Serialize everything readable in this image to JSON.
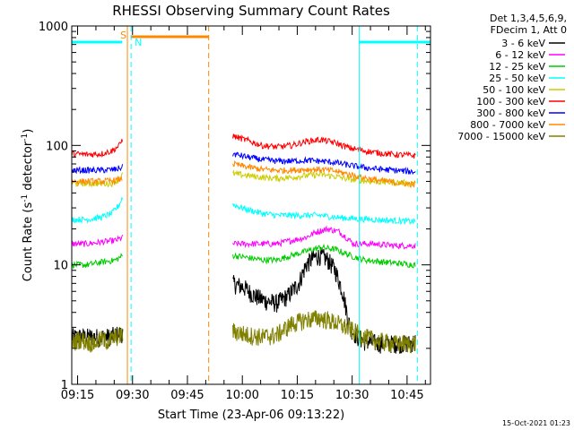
{
  "chart_data": {
    "type": "line",
    "title": "RHESSI Observing Summary Count Rates",
    "xlabel": "Start Time (23-Apr-06 09:13:22)",
    "ylabel_main": "Count Rate (s",
    "ylabel_sup1": "-1",
    "ylabel_mid": " detector",
    "ylabel_sup2": "-1",
    "ylabel_end": ")",
    "yscale": "log",
    "ylim": [
      1,
      1000
    ],
    "xlim_minutes": [
      0,
      98
    ],
    "x_ticks": [
      {
        "label": "09:15",
        "minute": 1.6
      },
      {
        "label": "09:30",
        "minute": 16.6
      },
      {
        "label": "09:45",
        "minute": 31.6
      },
      {
        "label": "10:00",
        "minute": 46.6
      },
      {
        "label": "10:15",
        "minute": 61.6
      },
      {
        "label": "10:30",
        "minute": 76.6
      },
      {
        "label": "10:45",
        "minute": 91.6
      }
    ],
    "y_ticks": [
      {
        "label": "1",
        "value": 1
      },
      {
        "label": "10",
        "value": 10
      },
      {
        "label": "100",
        "value": 100
      },
      {
        "label": "1000",
        "value": 1000
      }
    ],
    "legend_header": [
      "Det 1,3,4,5,6,9,",
      "FDecim 1, Att 0"
    ],
    "legend_placement": "right",
    "series": [
      {
        "name": "3 - 6 keV",
        "color": "#000000",
        "before": [
          [
            0,
            2.5
          ],
          [
            2,
            2.5
          ],
          [
            4,
            2.5
          ],
          [
            6,
            2.5
          ],
          [
            8,
            2.5
          ],
          [
            10,
            2.5
          ],
          [
            12,
            2.6
          ],
          [
            14,
            2.7
          ]
        ],
        "after": [
          [
            44,
            7
          ],
          [
            47,
            6.5
          ],
          [
            50,
            5.5
          ],
          [
            53,
            5
          ],
          [
            56,
            4.8
          ],
          [
            59,
            5.5
          ],
          [
            62,
            7
          ],
          [
            64,
            10
          ],
          [
            66,
            11.5
          ],
          [
            68,
            12
          ],
          [
            70,
            11
          ],
          [
            72,
            9
          ],
          [
            74,
            6
          ],
          [
            76,
            3
          ],
          [
            78,
            2.5
          ],
          [
            80,
            2.3
          ],
          [
            84,
            2.2
          ],
          [
            88,
            2.2
          ],
          [
            92,
            2.2
          ],
          [
            94,
            2.3
          ]
        ]
      },
      {
        "name": "6 - 12 keV",
        "color": "#ff00ff",
        "before": [
          [
            0,
            15
          ],
          [
            4,
            15
          ],
          [
            8,
            15.5
          ],
          [
            12,
            16
          ],
          [
            14,
            17
          ]
        ],
        "after": [
          [
            44,
            15
          ],
          [
            48,
            15
          ],
          [
            52,
            15
          ],
          [
            56,
            15
          ],
          [
            60,
            16
          ],
          [
            64,
            17
          ],
          [
            67,
            19
          ],
          [
            70,
            20
          ],
          [
            73,
            19
          ],
          [
            75,
            17
          ],
          [
            77,
            15
          ],
          [
            82,
            15
          ],
          [
            88,
            14.5
          ],
          [
            94,
            14.5
          ]
        ]
      },
      {
        "name": "12 - 25 keV",
        "color": "#00cc00",
        "before": [
          [
            0,
            10
          ],
          [
            4,
            10
          ],
          [
            8,
            10.5
          ],
          [
            12,
            11
          ],
          [
            14,
            12
          ]
        ],
        "after": [
          [
            44,
            12
          ],
          [
            48,
            11.5
          ],
          [
            52,
            11
          ],
          [
            56,
            11
          ],
          [
            60,
            12
          ],
          [
            64,
            13
          ],
          [
            68,
            14
          ],
          [
            72,
            13.5
          ],
          [
            76,
            12
          ],
          [
            80,
            11
          ],
          [
            86,
            10.5
          ],
          [
            94,
            10
          ]
        ]
      },
      {
        "name": "25 - 50 keV",
        "color": "#00ffff",
        "before": [
          [
            0,
            24
          ],
          [
            4,
            24
          ],
          [
            8,
            25
          ],
          [
            11,
            27
          ],
          [
            13,
            32
          ],
          [
            14,
            38
          ]
        ],
        "after": [
          [
            44,
            32
          ],
          [
            48,
            29
          ],
          [
            52,
            27
          ],
          [
            56,
            26
          ],
          [
            60,
            26
          ],
          [
            64,
            26
          ],
          [
            68,
            26
          ],
          [
            72,
            25
          ],
          [
            76,
            24.5
          ],
          [
            82,
            24
          ],
          [
            88,
            23.5
          ],
          [
            94,
            23
          ]
        ]
      },
      {
        "name": "50 - 100 keV",
        "color": "#cccc00",
        "before": [
          [
            0,
            48
          ],
          [
            4,
            48
          ],
          [
            8,
            48
          ],
          [
            11,
            48
          ],
          [
            13,
            52
          ],
          [
            14,
            58
          ]
        ],
        "after": [
          [
            44,
            58
          ],
          [
            48,
            56
          ],
          [
            52,
            54
          ],
          [
            56,
            53
          ],
          [
            60,
            54
          ],
          [
            64,
            56
          ],
          [
            68,
            57
          ],
          [
            72,
            55
          ],
          [
            76,
            52
          ],
          [
            82,
            50
          ],
          [
            88,
            49
          ],
          [
            94,
            48
          ]
        ]
      },
      {
        "name": "100 - 300 keV",
        "color": "#ff0000",
        "before": [
          [
            0,
            85
          ],
          [
            4,
            84
          ],
          [
            8,
            85
          ],
          [
            11,
            90
          ],
          [
            13,
            100
          ],
          [
            14,
            115
          ]
        ],
        "after": [
          [
            44,
            120
          ],
          [
            48,
            110
          ],
          [
            52,
            100
          ],
          [
            56,
            97
          ],
          [
            60,
            100
          ],
          [
            64,
            108
          ],
          [
            68,
            112
          ],
          [
            72,
            105
          ],
          [
            76,
            95
          ],
          [
            82,
            88
          ],
          [
            88,
            84
          ],
          [
            94,
            82
          ]
        ]
      },
      {
        "name": "300 - 800 keV",
        "color": "#0000ff",
        "before": [
          [
            0,
            62
          ],
          [
            4,
            62
          ],
          [
            8,
            62
          ],
          [
            12,
            63
          ],
          [
            14,
            66
          ]
        ],
        "after": [
          [
            44,
            85
          ],
          [
            48,
            80
          ],
          [
            52,
            76
          ],
          [
            56,
            74
          ],
          [
            60,
            74
          ],
          [
            64,
            75
          ],
          [
            68,
            74
          ],
          [
            72,
            72
          ],
          [
            76,
            68
          ],
          [
            82,
            64
          ],
          [
            88,
            62
          ],
          [
            94,
            60
          ]
        ]
      },
      {
        "name": "800 - 7000 keV",
        "color": "#ff8800",
        "before": [
          [
            0,
            50
          ],
          [
            4,
            50
          ],
          [
            8,
            50
          ],
          [
            12,
            51
          ],
          [
            14,
            53
          ]
        ],
        "after": [
          [
            44,
            70
          ],
          [
            48,
            66
          ],
          [
            52,
            63
          ],
          [
            56,
            62
          ],
          [
            60,
            62
          ],
          [
            64,
            63
          ],
          [
            68,
            63
          ],
          [
            72,
            61
          ],
          [
            76,
            57
          ],
          [
            82,
            52
          ],
          [
            88,
            49
          ],
          [
            94,
            47
          ]
        ]
      },
      {
        "name": "7000 - 15000 keV",
        "color": "#808000",
        "before": [
          [
            0,
            2.2
          ],
          [
            2,
            2.4
          ],
          [
            4,
            2.3
          ],
          [
            6,
            2.2
          ],
          [
            8,
            2.4
          ],
          [
            10,
            2.3
          ],
          [
            12,
            2.5
          ],
          [
            14,
            2.6
          ]
        ],
        "after": [
          [
            44,
            2.8
          ],
          [
            48,
            2.6
          ],
          [
            52,
            2.5
          ],
          [
            56,
            2.6
          ],
          [
            60,
            3.2
          ],
          [
            64,
            3.5
          ],
          [
            68,
            3.6
          ],
          [
            72,
            3.3
          ],
          [
            76,
            2.9
          ],
          [
            80,
            2.5
          ],
          [
            84,
            2.3
          ],
          [
            88,
            2.2
          ],
          [
            94,
            2.2
          ]
        ]
      }
    ],
    "annotations": {
      "saa_label": "S",
      "night_label": "N",
      "night_bars": [
        [
          0,
          13.8
        ],
        [
          78.5,
          98
        ]
      ],
      "saa_bar": [
        16.2,
        37.4
      ],
      "night_lines": [
        0,
        16.2,
        78.5,
        94.4
      ],
      "saa_lines": [
        15.2,
        37.4
      ],
      "gap_minutes": [
        14.8,
        44
      ]
    },
    "timestamp": "15-Oct-2021 01:23"
  }
}
